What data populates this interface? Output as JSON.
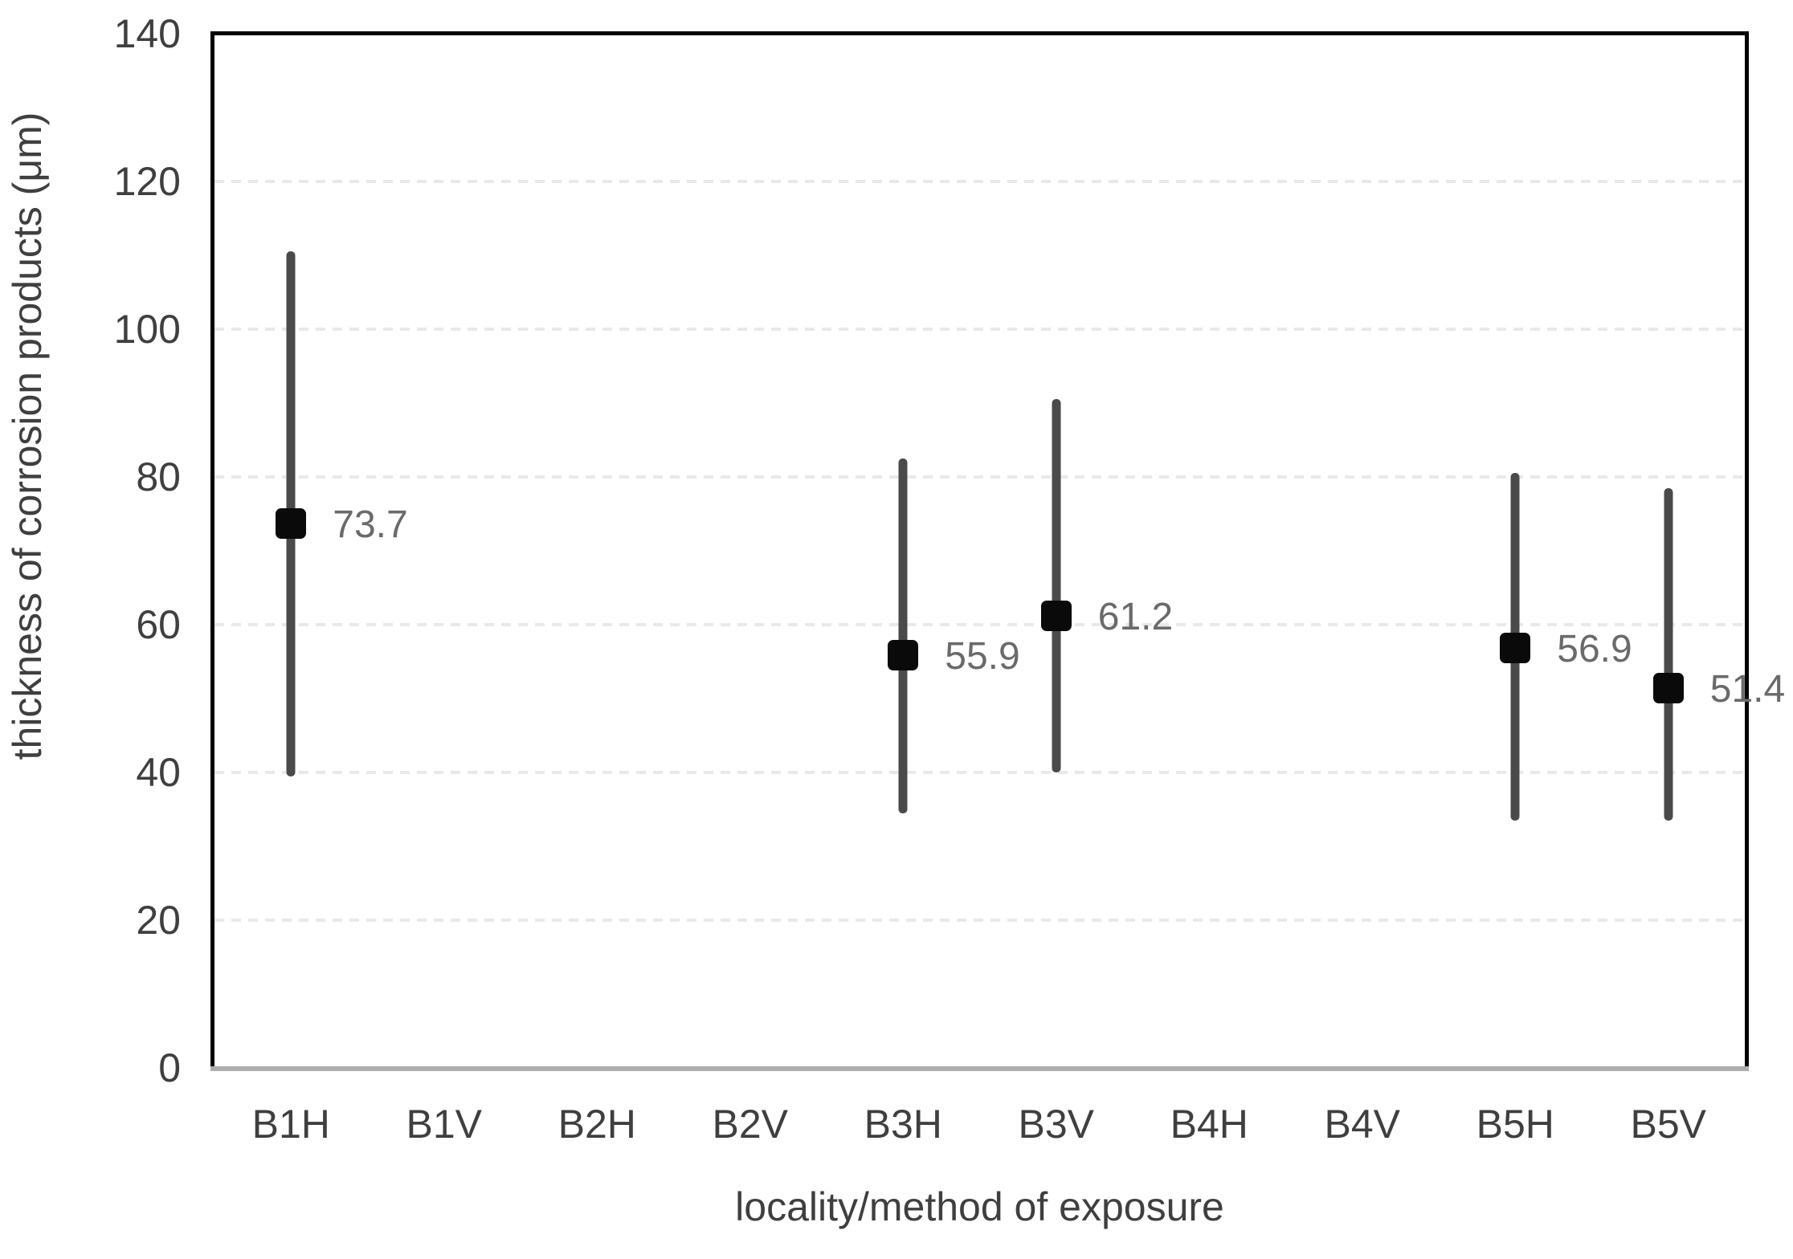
{
  "chart_data": {
    "type": "scatter",
    "subtype": "mean-with-error-bars",
    "title": "",
    "xlabel": "locality/method of exposure",
    "ylabel": "thickness of corrosion products (μm)",
    "categories": [
      "B1H",
      "B1V",
      "B2H",
      "B2V",
      "B3H",
      "B3V",
      "B4H",
      "B4V",
      "B5H",
      "B5V"
    ],
    "y_ticks": [
      0,
      20,
      40,
      60,
      80,
      100,
      120,
      140
    ],
    "ylim": [
      0,
      140
    ],
    "grid": "horizontal-dashed-light",
    "legend": "none",
    "series": [
      {
        "name": "thickness of corrosion products",
        "marker": "black-square",
        "points": [
          {
            "category": "B1H",
            "category_index": 0,
            "value": 73.7,
            "label": "73.7",
            "whisker_low": 39.5,
            "whisker_high": 110.5
          },
          {
            "category": "B3H",
            "category_index": 4,
            "value": 55.9,
            "label": "55.9",
            "whisker_low": 34.5,
            "whisker_high": 82.5
          },
          {
            "category": "B3V",
            "category_index": 5,
            "value": 61.2,
            "label": "61.2",
            "whisker_low": 40.0,
            "whisker_high": 90.5
          },
          {
            "category": "B5H",
            "category_index": 8,
            "value": 56.9,
            "label": "56.9",
            "whisker_low": 33.5,
            "whisker_high": 80.5
          },
          {
            "category": "B5V",
            "category_index": 9,
            "value": 51.4,
            "label": "51.4",
            "whisker_low": 33.5,
            "whisker_high": 78.5
          }
        ]
      }
    ]
  },
  "colors": {
    "error_bar": "#4a4a4a",
    "marker": "#0a0a0a",
    "data_label": "#6a6a6a",
    "axis_text": "#3f3f3f",
    "gridline": "#e9e9e9",
    "plot_border": "#000000",
    "x_axis_line": "#adadad",
    "background": "#ffffff"
  }
}
